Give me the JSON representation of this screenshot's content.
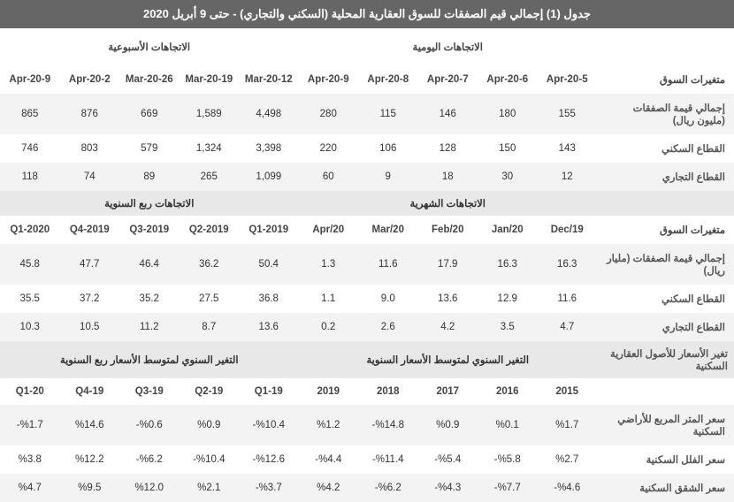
{
  "title": "جدول (1) إجمالي قيم الصفقات للسوق العقارية المحلية (السكني والتجاري) - حتى 9 أبريل 2020",
  "section1": {
    "right_header": "الاتجاهات اليومية",
    "left_header": "الاتجاهات الأسبوعية",
    "row_labels": [
      "متغيرات السوق",
      "إجمالي قيمة الصفقات (مليون ريال)",
      "القطاع السكني",
      "القطاع التجاري"
    ],
    "daily_cols": [
      "5-Apr-20",
      "6-Apr-20",
      "7-Apr-20",
      "8-Apr-20",
      "9-Apr-20"
    ],
    "weekly_cols": [
      "12-Mar-20",
      "19-Mar-20",
      "26-Mar-20",
      "2-Apr-20",
      "9-Apr-20"
    ],
    "rows": [
      {
        "daily": [
          "155",
          "180",
          "146",
          "115",
          "280"
        ],
        "weekly": [
          "4,498",
          "1,589",
          "669",
          "876",
          "865"
        ]
      },
      {
        "daily": [
          "143",
          "150",
          "128",
          "106",
          "220"
        ],
        "weekly": [
          "3,398",
          "1,324",
          "579",
          "803",
          "746"
        ]
      },
      {
        "daily": [
          "12",
          "30",
          "18",
          "9",
          "60"
        ],
        "weekly": [
          "1,099",
          "265",
          "89",
          "74",
          "118"
        ]
      }
    ]
  },
  "section2": {
    "right_header": "الاتجاهات الشهرية",
    "left_header": "الاتجاهات ربع السنوية",
    "row_labels": [
      "متغيرات السوق",
      "إجمالي قيمة الصفقات (مليار ريال)",
      "القطاع السكني",
      "القطاع التجاري"
    ],
    "monthly_cols": [
      "Dec/19",
      "Jan/20",
      "Feb/20",
      "Mar/20",
      "Apr/20"
    ],
    "quarterly_cols": [
      "2019-Q1",
      "2019-Q2",
      "2019-Q3",
      "2019-Q4",
      "2020-Q1"
    ],
    "rows": [
      {
        "monthly": [
          "16.3",
          "16.3",
          "17.9",
          "11.6",
          "1.3"
        ],
        "quarterly": [
          "50.4",
          "36.2",
          "46.4",
          "47.7",
          "45.8"
        ]
      },
      {
        "monthly": [
          "11.6",
          "12.9",
          "13.6",
          "9.0",
          "1.1"
        ],
        "quarterly": [
          "36.8",
          "27.5",
          "35.2",
          "37.2",
          "35.5"
        ]
      },
      {
        "monthly": [
          "4.7",
          "3.5",
          "4.2",
          "2.6",
          "0.2"
        ],
        "quarterly": [
          "13.6",
          "8.7",
          "11.2",
          "10.5",
          "10.3"
        ]
      }
    ]
  },
  "section3": {
    "label_header": "تغير الأسعار للأصول العقارية السكنية",
    "right_header": "التغير السنوي لمتوسط الأسعار السنوية",
    "left_header": "التغير السنوي لمتوسط الأسعار ربع السنوية",
    "row_labels": [
      "",
      "سعر المتر المربع للأراضي السكنية",
      "سعر الفلل السكنية",
      "سعر الشقق السكنية"
    ],
    "annual_cols": [
      "2015",
      "2016",
      "2017",
      "2018",
      "2019"
    ],
    "q_cols": [
      "19-Q1",
      "19-Q2",
      "19-Q3",
      "19-Q4",
      "20-Q1"
    ],
    "rows": [
      {
        "annual": [
          "%1.7",
          "%0.1",
          "%0.9",
          "%14.8-",
          "%1.2"
        ],
        "q": [
          "%10.4-",
          "%0.9",
          "%0.6-",
          "%14.6",
          "%1.7-"
        ]
      },
      {
        "annual": [
          "%2.7",
          "%5.8-",
          "%5.4-",
          "%11.4-",
          "%4.4-"
        ],
        "q": [
          "%12.6-",
          "%10.4-",
          "%6.2-",
          "%12.2",
          "%3.8"
        ]
      },
      {
        "annual": [
          "%4.6-",
          "%7.7-",
          "%4.3-",
          "%6.2-",
          "%4.2"
        ],
        "q": [
          "%3.7-",
          "%2.1",
          "%12.0",
          "%9.5",
          "%4.7"
        ]
      }
    ]
  }
}
